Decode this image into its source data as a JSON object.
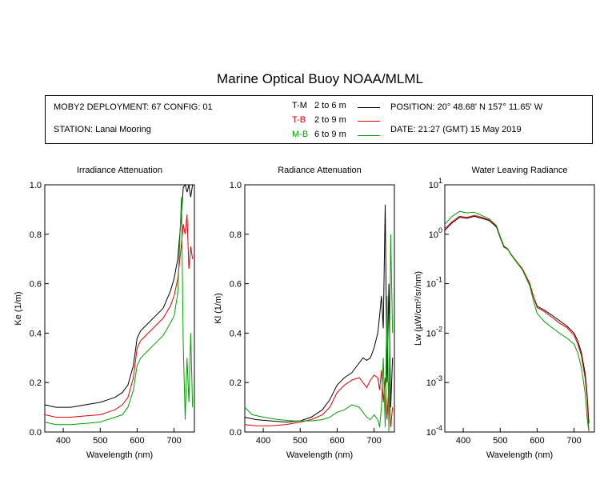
{
  "title": "Marine Optical Buoy NOAA/MLML",
  "info": {
    "deployment": "MOBY2 DEPLOYMENT: 67 CONFIG: 01",
    "station": "STATION: Lanai Mooring",
    "position": "POSITION: 20° 48.68' N   157° 11.65' W",
    "date": "DATE: 21:27 (GMT) 15 May 2019"
  },
  "legend": [
    {
      "name": "T-M",
      "range": "2 to 6  m",
      "color": "#000000"
    },
    {
      "name": "T-B",
      "range": "2 to 9  m",
      "color": "#e00000"
    },
    {
      "name": "M-B",
      "range": "6 to 9  m",
      "color": "#00a000"
    }
  ],
  "chart_data": [
    {
      "type": "line",
      "title": "Irradiance Attenuation",
      "xlabel": "Wavelength (nm)",
      "ylabel": "Ke  (1/m)",
      "xlim": [
        350,
        755
      ],
      "ylim": [
        0,
        1.0
      ],
      "xticks": [
        400,
        500,
        600,
        700
      ],
      "yticks": [
        0.0,
        0.2,
        0.4,
        0.6,
        0.8,
        1.0
      ],
      "ytick_labels": [
        "0.0",
        "0.2",
        "0.4",
        "0.6",
        "0.8",
        "1.0"
      ],
      "series": [
        {
          "name": "T-M",
          "x": [
            350,
            380,
            420,
            460,
            500,
            520,
            540,
            560,
            575,
            590,
            600,
            610,
            630,
            650,
            670,
            690,
            700,
            710,
            720,
            725,
            730,
            735,
            740,
            745,
            750
          ],
          "y": [
            0.11,
            0.1,
            0.1,
            0.11,
            0.12,
            0.13,
            0.14,
            0.16,
            0.19,
            0.27,
            0.38,
            0.41,
            0.44,
            0.47,
            0.5,
            0.57,
            0.62,
            0.7,
            0.88,
            0.99,
            1.0,
            0.97,
            1.0,
            0.95,
            1.0
          ]
        },
        {
          "name": "T-B",
          "x": [
            350,
            380,
            420,
            460,
            500,
            520,
            540,
            560,
            575,
            590,
            600,
            610,
            630,
            650,
            670,
            690,
            700,
            710,
            720,
            725,
            730,
            735,
            740,
            745,
            750
          ],
          "y": [
            0.07,
            0.06,
            0.06,
            0.065,
            0.07,
            0.08,
            0.09,
            0.11,
            0.14,
            0.22,
            0.34,
            0.37,
            0.4,
            0.43,
            0.46,
            0.51,
            0.55,
            0.62,
            0.76,
            0.84,
            0.8,
            0.88,
            0.66,
            0.75,
            0.7
          ]
        },
        {
          "name": "M-B",
          "x": [
            350,
            380,
            420,
            460,
            500,
            520,
            540,
            560,
            575,
            590,
            600,
            610,
            630,
            650,
            670,
            690,
            700,
            710,
            720,
            725,
            730,
            735,
            740,
            745,
            750
          ],
          "y": [
            0.04,
            0.03,
            0.03,
            0.035,
            0.04,
            0.05,
            0.06,
            0.07,
            0.1,
            0.17,
            0.27,
            0.3,
            0.33,
            0.36,
            0.39,
            0.44,
            0.47,
            0.56,
            0.95,
            0.35,
            0.05,
            0.3,
            0.12,
            0.4,
            0.1
          ]
        }
      ]
    },
    {
      "type": "line",
      "title": "Radiance Attenuation",
      "xlabel": "Wavelength (nm)",
      "ylabel": "Kl  (1/m)",
      "xlim": [
        350,
        755
      ],
      "ylim": [
        0,
        1.0
      ],
      "xticks": [
        400,
        500,
        600,
        700
      ],
      "yticks": [
        0.0,
        0.2,
        0.4,
        0.6,
        0.8,
        1.0
      ],
      "ytick_labels": [
        "0.0",
        "0.2",
        "0.4",
        "0.6",
        "0.8",
        "1.0"
      ],
      "series": [
        {
          "name": "T-M",
          "x": [
            350,
            380,
            420,
            460,
            500,
            530,
            560,
            580,
            600,
            620,
            640,
            660,
            670,
            680,
            690,
            700,
            710,
            715,
            720,
            725,
            730,
            735,
            740,
            745,
            750
          ],
          "y": [
            0.06,
            0.05,
            0.045,
            0.04,
            0.045,
            0.06,
            0.09,
            0.13,
            0.19,
            0.22,
            0.24,
            0.28,
            0.3,
            0.29,
            0.3,
            0.34,
            0.4,
            0.47,
            0.55,
            0.42,
            0.92,
            0.2,
            0.6,
            0.1,
            0.3
          ]
        },
        {
          "name": "T-B",
          "x": [
            350,
            380,
            420,
            460,
            500,
            530,
            560,
            580,
            600,
            620,
            640,
            660,
            670,
            680,
            690,
            700,
            710,
            715,
            720,
            725,
            730,
            735,
            740,
            745,
            750
          ],
          "y": [
            0.03,
            0.025,
            0.025,
            0.03,
            0.04,
            0.05,
            0.07,
            0.1,
            0.16,
            0.19,
            0.21,
            0.22,
            0.2,
            0.18,
            0.21,
            0.23,
            0.22,
            0.17,
            0.25,
            0.12,
            0.22,
            0.05,
            0.2,
            0.02,
            0.1
          ]
        },
        {
          "name": "M-B",
          "x": [
            350,
            370,
            400,
            440,
            480,
            500,
            530,
            560,
            580,
            600,
            620,
            640,
            660,
            680,
            690,
            700,
            710,
            715,
            720,
            725,
            730,
            735,
            740,
            745,
            750
          ],
          "y": [
            0.1,
            0.07,
            0.06,
            0.05,
            0.045,
            0.045,
            0.045,
            0.05,
            0.06,
            0.08,
            0.09,
            0.11,
            0.1,
            0.06,
            0.05,
            0.07,
            0.05,
            0.02,
            0.1,
            0.3,
            0.02,
            0.55,
            0.0,
            0.8,
            0.4
          ]
        }
      ]
    },
    {
      "type": "line",
      "title": "Water Leaving Radiance",
      "xlabel": "Wavelength (nm)",
      "ylabel": "Lw  (µW/cm²/sr/nm)",
      "yscale": "log",
      "xlim": [
        350,
        755
      ],
      "ylim": [
        0.0001,
        10
      ],
      "xticks": [
        400,
        500,
        600,
        700
      ],
      "yticks": [
        0.0001,
        0.001,
        0.01,
        0.1,
        1,
        10
      ],
      "ytick_base": "10",
      "ytick_exps": [
        "-4",
        "-3",
        "-2",
        "-1",
        "0",
        "1"
      ],
      "series": [
        {
          "name": "T-M",
          "x": [
            350,
            370,
            390,
            410,
            430,
            450,
            470,
            490,
            500,
            510,
            520,
            530,
            540,
            560,
            580,
            590,
            600,
            620,
            640,
            660,
            680,
            700,
            710,
            720,
            730,
            735,
            740
          ],
          "y": [
            1.2,
            1.7,
            2.2,
            2.1,
            2.3,
            2.1,
            1.9,
            1.4,
            0.85,
            0.55,
            0.5,
            0.38,
            0.3,
            0.2,
            0.1,
            0.055,
            0.035,
            0.029,
            0.023,
            0.018,
            0.014,
            0.01,
            0.007,
            0.004,
            0.0015,
            0.0006,
            0.00015
          ]
        },
        {
          "name": "T-B",
          "x": [
            350,
            370,
            390,
            410,
            430,
            450,
            470,
            490,
            500,
            510,
            520,
            530,
            540,
            560,
            580,
            590,
            600,
            620,
            640,
            660,
            680,
            700,
            710,
            720,
            730,
            735,
            740
          ],
          "y": [
            1.3,
            1.8,
            2.3,
            2.2,
            2.4,
            2.2,
            1.95,
            1.45,
            0.88,
            0.57,
            0.51,
            0.39,
            0.31,
            0.2,
            0.1,
            0.054,
            0.033,
            0.027,
            0.021,
            0.016,
            0.013,
            0.009,
            0.006,
            0.0035,
            0.0012,
            0.0005,
            0.0001
          ]
        },
        {
          "name": "M-B",
          "x": [
            350,
            370,
            390,
            410,
            430,
            450,
            470,
            490,
            500,
            510,
            520,
            530,
            540,
            560,
            580,
            590,
            600,
            620,
            640,
            660,
            680,
            700,
            710,
            720,
            730,
            735,
            740
          ],
          "y": [
            1.6,
            2.3,
            2.9,
            2.7,
            2.8,
            2.4,
            2.05,
            1.5,
            0.9,
            0.58,
            0.51,
            0.38,
            0.3,
            0.19,
            0.09,
            0.045,
            0.025,
            0.017,
            0.013,
            0.01,
            0.008,
            0.006,
            0.004,
            0.002,
            0.0006,
            0.0002,
            0.0001
          ]
        }
      ]
    }
  ]
}
